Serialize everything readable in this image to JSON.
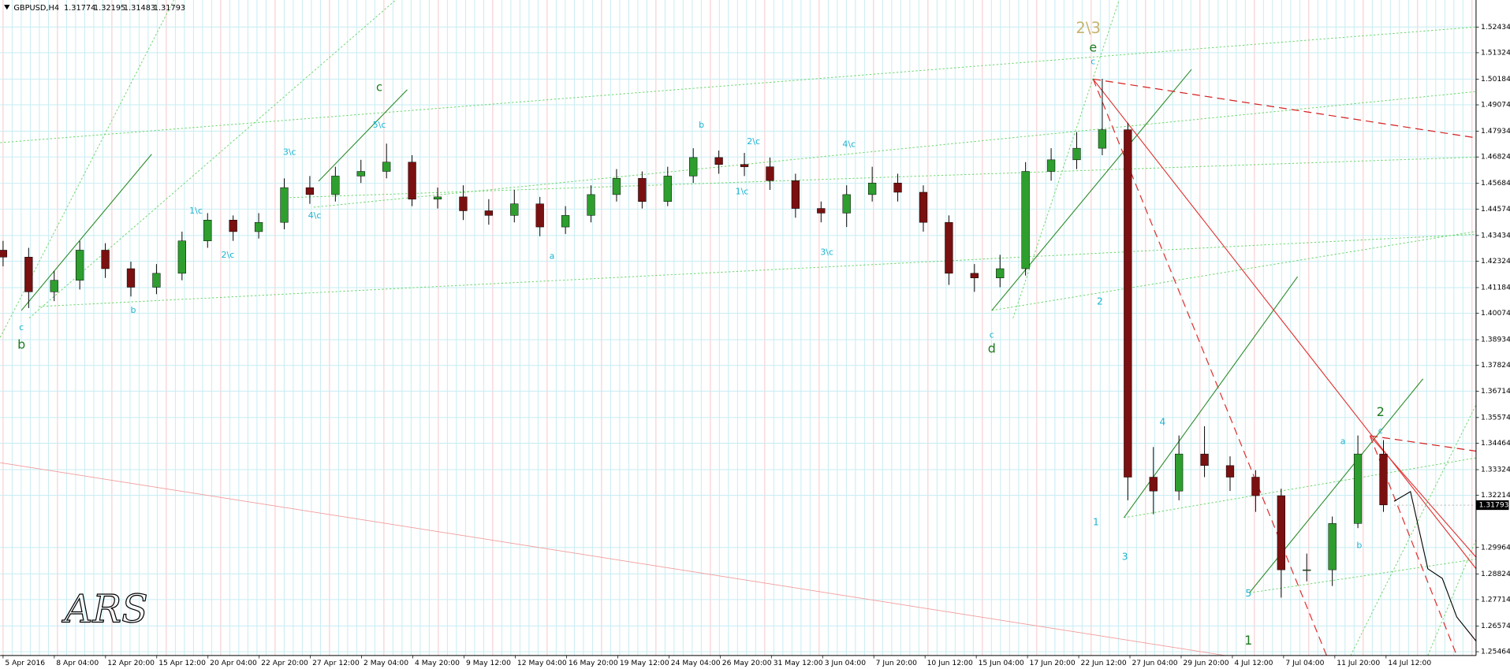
{
  "chart_data": {
    "type": "candlestick",
    "title": "GBPUSD,H4",
    "header_values": [
      1.31774,
      1.32195,
      1.31483,
      1.31793
    ],
    "last_price": 1.31793,
    "x_labels": [
      "5 Apr 2016",
      "8 Apr 04:00",
      "12 Apr 20:00",
      "15 Apr 12:00",
      "20 Apr 04:00",
      "22 Apr 20:00",
      "27 Apr 12:00",
      "2 May 04:00",
      "4 May 20:00",
      "9 May 12:00",
      "12 May 04:00",
      "16 May 20:00",
      "19 May 12:00",
      "24 May 04:00",
      "26 May 20:00",
      "31 May 12:00",
      "3 Jun 04:00",
      "7 Jun 20:00",
      "10 Jun 12:00",
      "15 Jun 04:00",
      "17 Jun 20:00",
      "22 Jun 12:00",
      "27 Jun 04:00",
      "29 Jun 20:00",
      "4 Jul 12:00",
      "7 Jul 04:00",
      "11 Jul 20:00",
      "14 Jul 12:00"
    ],
    "open": [
      1.428,
      1.425,
      1.41,
      1.415,
      1.428,
      1.42,
      1.412,
      1.418,
      1.432,
      1.441,
      1.436,
      1.44,
      1.455,
      1.452,
      1.46,
      1.462,
      1.466,
      1.45,
      1.451,
      1.445,
      1.443,
      1.448,
      1.438,
      1.443,
      1.452,
      1.459,
      1.449,
      1.46,
      1.468,
      1.465,
      1.464,
      1.458,
      1.446,
      1.444,
      1.452,
      1.457,
      1.453,
      1.44,
      1.418,
      1.416,
      1.42,
      1.462,
      1.467,
      1.472,
      1.48,
      1.33,
      1.324,
      1.34,
      1.335,
      1.33,
      1.322,
      1.29,
      1.29,
      1.31,
      1.34
    ],
    "high": [
      1.432,
      1.429,
      1.419,
      1.432,
      1.431,
      1.423,
      1.422,
      1.436,
      1.444,
      1.443,
      1.444,
      1.459,
      1.46,
      1.464,
      1.467,
      1.474,
      1.469,
      1.455,
      1.456,
      1.45,
      1.454,
      1.451,
      1.447,
      1.456,
      1.463,
      1.462,
      1.464,
      1.472,
      1.471,
      1.47,
      1.468,
      1.461,
      1.449,
      1.456,
      1.464,
      1.461,
      1.456,
      1.443,
      1.422,
      1.426,
      1.466,
      1.472,
      1.479,
      1.502,
      1.483,
      1.343,
      1.348,
      1.352,
      1.339,
      1.333,
      1.325,
      1.297,
      1.313,
      1.348,
      1.346
    ],
    "low": [
      1.421,
      1.403,
      1.406,
      1.411,
      1.416,
      1.408,
      1.409,
      1.415,
      1.429,
      1.432,
      1.433,
      1.437,
      1.448,
      1.449,
      1.457,
      1.459,
      1.447,
      1.446,
      1.441,
      1.439,
      1.44,
      1.434,
      1.435,
      1.44,
      1.449,
      1.446,
      1.447,
      1.457,
      1.461,
      1.46,
      1.454,
      1.442,
      1.44,
      1.438,
      1.449,
      1.449,
      1.436,
      1.413,
      1.41,
      1.412,
      1.417,
      1.458,
      1.463,
      1.469,
      1.32,
      1.314,
      1.32,
      1.33,
      1.324,
      1.315,
      1.278,
      1.285,
      1.283,
      1.308,
      1.315
    ],
    "close": [
      1.425,
      1.41,
      1.415,
      1.428,
      1.42,
      1.412,
      1.418,
      1.432,
      1.441,
      1.436,
      1.44,
      1.455,
      1.452,
      1.46,
      1.462,
      1.466,
      1.45,
      1.451,
      1.445,
      1.443,
      1.448,
      1.438,
      1.443,
      1.452,
      1.459,
      1.449,
      1.46,
      1.468,
      1.465,
      1.464,
      1.458,
      1.446,
      1.444,
      1.452,
      1.457,
      1.453,
      1.44,
      1.418,
      1.416,
      1.42,
      1.462,
      1.467,
      1.472,
      1.48,
      1.33,
      1.324,
      1.34,
      1.335,
      1.33,
      1.322,
      1.29,
      1.29,
      1.31,
      1.34,
      1.318
    ],
    "up_color": "#2e9e2e",
    "down_color": "#7a1010",
    "ylim": [
      1.253,
      1.536
    ],
    "yticks": [
      1.52434,
      1.51324,
      1.50184,
      1.49074,
      1.47934,
      1.46824,
      1.45684,
      1.44574,
      1.43434,
      1.42324,
      1.41184,
      1.40074,
      1.38934,
      1.37824,
      1.36714,
      1.35574,
      1.34464,
      1.33324,
      1.32214,
      1.29964,
      1.28824,
      1.27714,
      1.26574,
      1.25464
    ],
    "grid": true,
    "annotations": [
      "b",
      "c",
      "c",
      "5\\c",
      "3\\c",
      "1\\c",
      "2\\c",
      "4\\c",
      "b",
      "b",
      "2\\c",
      "1\\c",
      "4\\c",
      "3\\c",
      "a",
      "d",
      "c",
      "e",
      "2\\3",
      "c",
      "2",
      "1",
      "3",
      "4",
      "5",
      "1",
      "a",
      "b",
      "2",
      "c",
      "ARS"
    ]
  }
}
